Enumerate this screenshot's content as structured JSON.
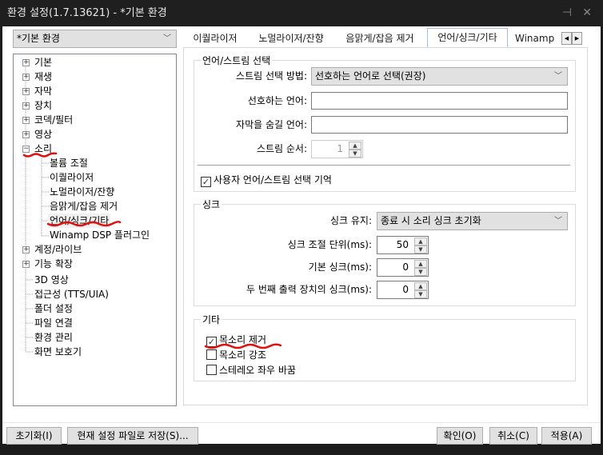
{
  "window": {
    "title": "환경 설정(1.7.13621) - *기본 환경",
    "pin_icon": "pin-icon",
    "close_icon": "close-icon"
  },
  "profile_combo": {
    "value": "*기본 환경"
  },
  "tree": {
    "items": [
      {
        "label": "기본",
        "expander": "plus"
      },
      {
        "label": "재생",
        "expander": "plus"
      },
      {
        "label": "자막",
        "expander": "plus"
      },
      {
        "label": "장치",
        "expander": "plus"
      },
      {
        "label": "코덱/필터",
        "expander": "plus"
      },
      {
        "label": "영상",
        "expander": "plus"
      },
      {
        "label": "소리",
        "expander": "minus"
      }
    ],
    "children": [
      "볼륨 조절",
      "이퀄라이저",
      "노멀라이저/잔향",
      "음맑게/잡음 제거",
      "언어/싱크/기타",
      "Winamp DSP 플러그인"
    ],
    "selected_child": "언어/싱크/기타",
    "items_after": [
      {
        "label": "계정/라이브",
        "expander": "plus"
      },
      {
        "label": "기능 확장",
        "expander": "plus"
      },
      {
        "label": "3D 영상"
      },
      {
        "label": "접근성 (TTS/UIA)"
      },
      {
        "label": "폴더 설정"
      },
      {
        "label": "파일 연결"
      },
      {
        "label": "환경 관리"
      },
      {
        "label": "화면 보호기"
      }
    ]
  },
  "tabs": [
    {
      "label": "이퀄라이저"
    },
    {
      "label": "노멀라이저/잔향"
    },
    {
      "label": "음맑게/잡음 제거"
    },
    {
      "label": "언어/싱크/기타",
      "active": true
    },
    {
      "label": "Winamp D"
    }
  ],
  "stream_group": {
    "title": "언어/스트림 선택",
    "method_label": "스트림 선택 방법:",
    "method_value": "선호하는 언어로 선택(권장)",
    "preferred_label": "선호하는 언어:",
    "preferred_value": "",
    "hide_sub_label": "자막을 숨길 언어:",
    "hide_sub_value": "",
    "order_label": "스트림 순서:",
    "order_value": "1",
    "remember_label": "사용자 언어/스트림 선택 기억",
    "remember_checked": true
  },
  "sync_group": {
    "title": "싱크",
    "keep_label": "싱크 유지:",
    "keep_value": "종료 시 소리 싱크 초기화",
    "step_label": "싱크 조절 단위(ms):",
    "step_value": "50",
    "base_label": "기본 싱크(ms):",
    "base_value": "0",
    "second_label": "두 번째 출력 장치의 싱크(ms):",
    "second_value": "0"
  },
  "etc_group": {
    "title": "기타",
    "options": [
      {
        "label": "목소리 제거",
        "checked": true
      },
      {
        "label": "목소리 강조",
        "checked": false
      },
      {
        "label": "스테레오 좌우 바꿈",
        "checked": false
      }
    ]
  },
  "buttons": {
    "reset": "초기화(I)",
    "save_file": "현재 설정 파일로 저장(S)...",
    "ok": "확인(O)",
    "cancel": "취소(C)",
    "apply": "적용(A)"
  },
  "annotation_color": "#e01010"
}
